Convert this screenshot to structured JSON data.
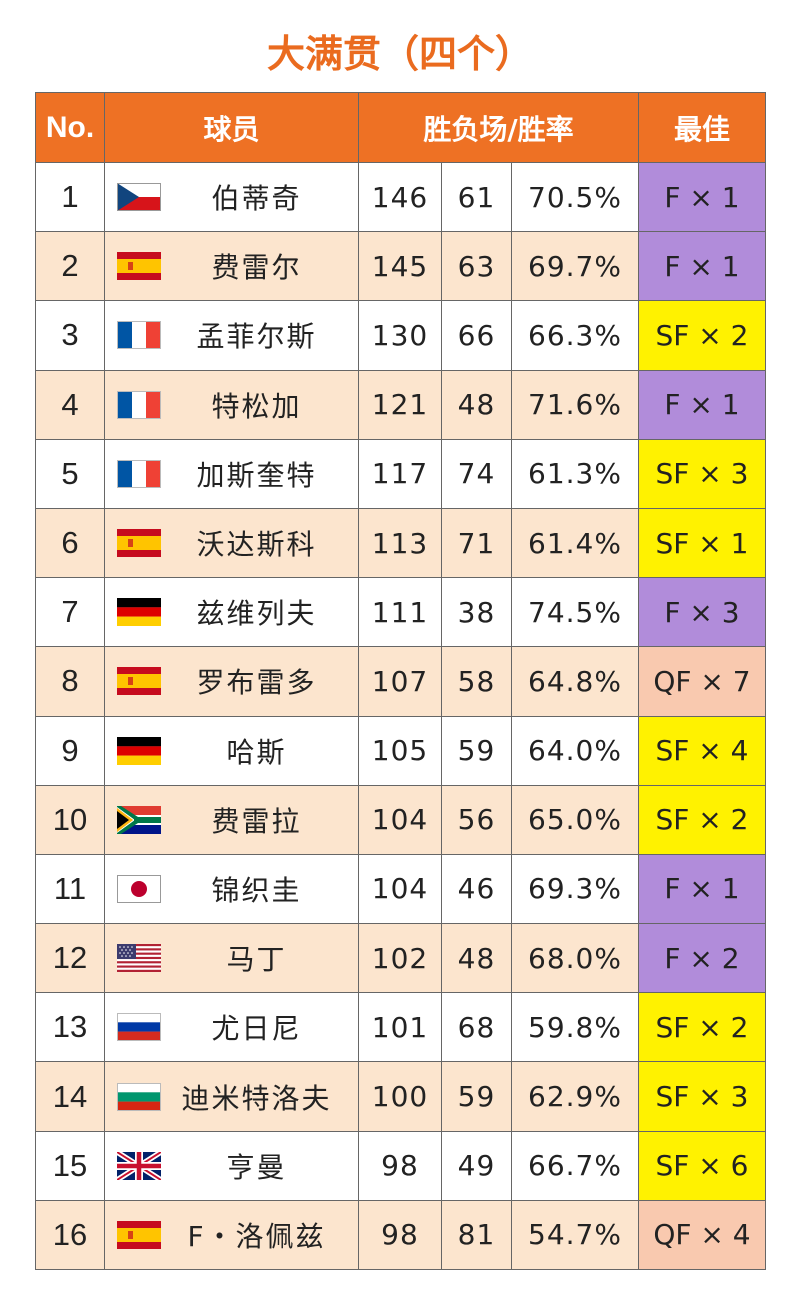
{
  "title": "大满贯（四个）",
  "headers": {
    "no": "No.",
    "player": "球员",
    "record": "胜负场/胜率",
    "best": "最佳"
  },
  "colors": {
    "title": "#EA6B1F",
    "header_bg": "#EE7124",
    "row_alt": "#FCE5CE",
    "best_F": "#B18CDA",
    "best_SF": "#FFF200",
    "best_QF": "#F9C9AF"
  },
  "rows": [
    {
      "no": "1",
      "flag": "czech-flag",
      "name": "伯蒂奇",
      "wins": "146",
      "losses": "61",
      "rate": "70.5%",
      "best": "F × 1",
      "level": "F"
    },
    {
      "no": "2",
      "flag": "spain-flag",
      "name": "费雷尔",
      "wins": "145",
      "losses": "63",
      "rate": "69.7%",
      "best": "F × 1",
      "level": "F"
    },
    {
      "no": "3",
      "flag": "france-flag",
      "name": "孟菲尔斯",
      "wins": "130",
      "losses": "66",
      "rate": "66.3%",
      "best": "SF × 2",
      "level": "SF"
    },
    {
      "no": "4",
      "flag": "france-flag",
      "name": "特松加",
      "wins": "121",
      "losses": "48",
      "rate": "71.6%",
      "best": "F × 1",
      "level": "F"
    },
    {
      "no": "5",
      "flag": "france-flag",
      "name": "加斯奎特",
      "wins": "117",
      "losses": "74",
      "rate": "61.3%",
      "best": "SF × 3",
      "level": "SF"
    },
    {
      "no": "6",
      "flag": "spain-flag",
      "name": "沃达斯科",
      "wins": "113",
      "losses": "71",
      "rate": "61.4%",
      "best": "SF × 1",
      "level": "SF"
    },
    {
      "no": "7",
      "flag": "germany-flag",
      "name": "兹维列夫",
      "wins": "111",
      "losses": "38",
      "rate": "74.5%",
      "best": "F × 3",
      "level": "F"
    },
    {
      "no": "8",
      "flag": "spain-flag",
      "name": "罗布雷多",
      "wins": "107",
      "losses": "58",
      "rate": "64.8%",
      "best": "QF × 7",
      "level": "QF"
    },
    {
      "no": "9",
      "flag": "germany-flag",
      "name": "哈斯",
      "wins": "105",
      "losses": "59",
      "rate": "64.0%",
      "best": "SF × 4",
      "level": "SF"
    },
    {
      "no": "10",
      "flag": "south-africa-flag",
      "name": "费雷拉",
      "wins": "104",
      "losses": "56",
      "rate": "65.0%",
      "best": "SF × 2",
      "level": "SF"
    },
    {
      "no": "11",
      "flag": "japan-flag",
      "name": "锦织圭",
      "wins": "104",
      "losses": "46",
      "rate": "69.3%",
      "best": "F × 1",
      "level": "F"
    },
    {
      "no": "12",
      "flag": "usa-flag",
      "name": "马丁",
      "wins": "102",
      "losses": "48",
      "rate": "68.0%",
      "best": "F × 2",
      "level": "F"
    },
    {
      "no": "13",
      "flag": "russia-flag",
      "name": "尤日尼",
      "wins": "101",
      "losses": "68",
      "rate": "59.8%",
      "best": "SF × 2",
      "level": "SF"
    },
    {
      "no": "14",
      "flag": "bulgaria-flag",
      "name": "迪米特洛夫",
      "wins": "100",
      "losses": "59",
      "rate": "62.9%",
      "best": "SF × 3",
      "level": "SF"
    },
    {
      "no": "15",
      "flag": "uk-flag",
      "name": "亨曼",
      "wins": "98",
      "losses": "49",
      "rate": "66.7%",
      "best": "SF × 6",
      "level": "SF"
    },
    {
      "no": "16",
      "flag": "spain-flag",
      "name": "F・洛佩兹",
      "wins": "98",
      "losses": "81",
      "rate": "54.7%",
      "best": "QF × 4",
      "level": "QF"
    }
  ]
}
